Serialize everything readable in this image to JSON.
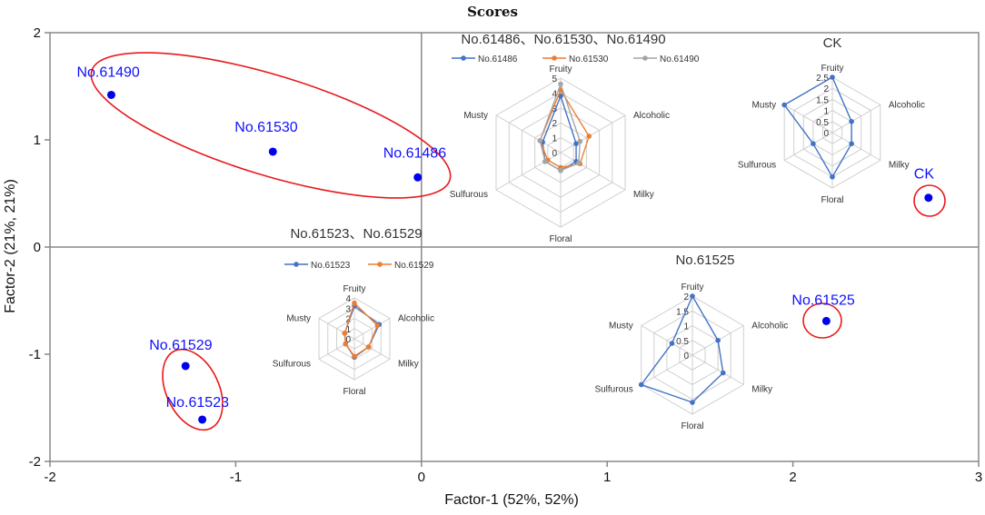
{
  "chart_data": {
    "type": "scatter",
    "title": "Scores",
    "xlabel": "Factor-1 (52%, 52%)",
    "ylabel": "Factor-2 (21%, 21%)",
    "xlim": [
      -2,
      3
    ],
    "ylim": [
      -2,
      2
    ],
    "xticks": [
      "-2",
      "-1",
      "0",
      "1",
      "2",
      "3"
    ],
    "yticks": [
      "2",
      "1",
      "0",
      "-1",
      "-2"
    ],
    "points": [
      {
        "label": "No.61490",
        "x": -1.67,
        "y": 1.42
      },
      {
        "label": "No.61530",
        "x": -0.8,
        "y": 0.89
      },
      {
        "label": "No.61486",
        "x": -0.02,
        "y": 0.65
      },
      {
        "label": "CK",
        "x": 2.73,
        "y": 0.46
      },
      {
        "label": "No.61525",
        "x": 2.18,
        "y": -0.69
      },
      {
        "label": "No.61529",
        "x": -1.27,
        "y": -1.11
      },
      {
        "label": "No.61523",
        "x": -1.18,
        "y": -1.61
      }
    ],
    "point_color": "#0000ee",
    "ellipse_color": "#e8191c",
    "radar_charts": [
      {
        "title": "No.61486、No.61530、No.61490",
        "axes": [
          "Fruity",
          "Alcoholic",
          "Milky",
          "Floral",
          "Sulfurous",
          "Musty"
        ],
        "max": 5,
        "ticks": [
          "0",
          "1",
          "2",
          "3",
          "4",
          "5"
        ],
        "series": [
          {
            "name": "No.61486",
            "color": "#4472c4",
            "values": [
              3.8,
              1.2,
              1.2,
              1.2,
              1.2,
              1.4
            ]
          },
          {
            "name": "No.61530",
            "color": "#ed7d31",
            "values": [
              4.2,
              2.2,
              1.5,
              1.0,
              1.0,
              1.6
            ]
          },
          {
            "name": "No.61490",
            "color": "#a5a5a5",
            "values": [
              4.6,
              1.5,
              1.4,
              1.2,
              1.2,
              1.6
            ]
          }
        ]
      },
      {
        "title": "CK",
        "axes": [
          "Fruity",
          "Alcoholic",
          "Milky",
          "Floral",
          "Sulfurous",
          "Musty"
        ],
        "max": 2.5,
        "ticks": [
          "0",
          "0.5",
          "1",
          "1.5",
          "2",
          "2.5"
        ],
        "series": [
          {
            "name": "CK",
            "color": "#4472c4",
            "values": [
              2.5,
              1.0,
              1.0,
              2.0,
              1.0,
              2.5
            ]
          }
        ]
      },
      {
        "title": "No.61523、No.61529",
        "axes": [
          "Fruity",
          "Alcoholic",
          "Milky",
          "Floral",
          "Sulfurous",
          "Musty"
        ],
        "max": 4,
        "ticks": [
          "0",
          "1",
          "2",
          "3",
          "4"
        ],
        "series": [
          {
            "name": "No.61523",
            "color": "#4472c4",
            "values": [
              3.2,
              2.8,
              1.6,
              1.8,
              1.0,
              1.1
            ]
          },
          {
            "name": "No.61529",
            "color": "#ed7d31",
            "values": [
              3.5,
              2.6,
              1.6,
              1.7,
              1.0,
              1.1
            ]
          }
        ]
      },
      {
        "title": "No.61525",
        "axes": [
          "Fruity",
          "Alcoholic",
          "Milky",
          "Floral",
          "Sulfurous",
          "Musty"
        ],
        "max": 2,
        "ticks": [
          "0",
          "0.5",
          "1",
          "1.5",
          "2"
        ],
        "series": [
          {
            "name": "No.61525",
            "color": "#4472c4",
            "values": [
              2.0,
              1.0,
              1.2,
              1.6,
              2.0,
              0.8
            ]
          }
        ]
      }
    ]
  }
}
